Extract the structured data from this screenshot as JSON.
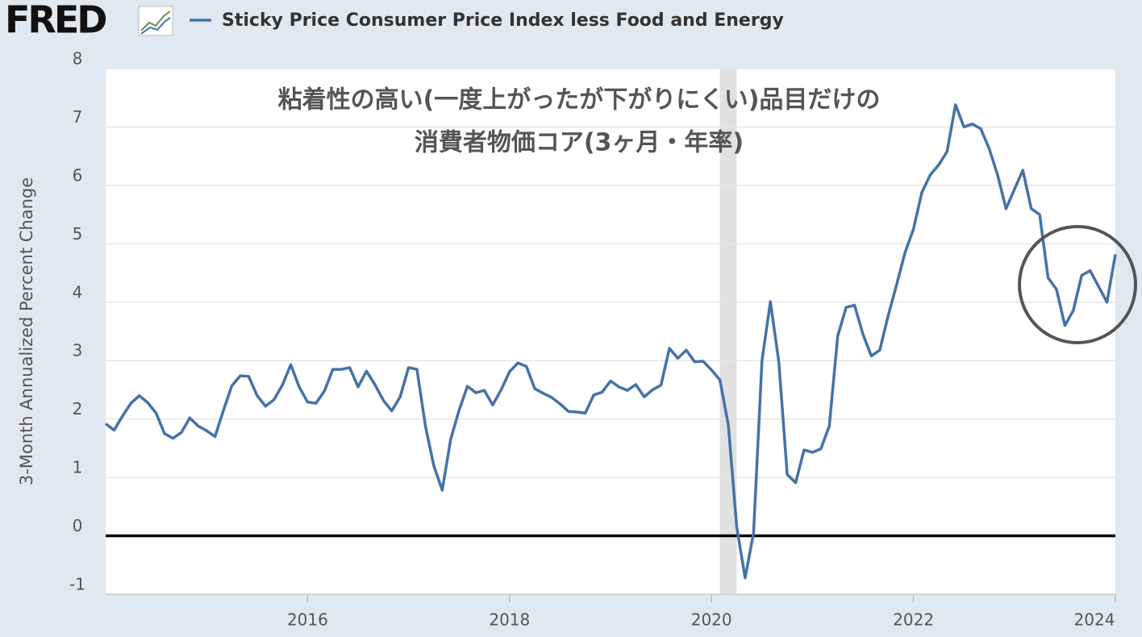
{
  "chart_data": {
    "type": "line",
    "logo": "FRED",
    "annotation": [
      "粘着性の高い(一度上がったが下がりにくい)品目だけの",
      "消費者物価コア(3ヶ月・年率)"
    ],
    "ylabel": "3-Month Annualized Percent Change",
    "xlim": [
      2014,
      2024
    ],
    "xticks": [
      2016,
      2018,
      2020,
      2022,
      2024
    ],
    "ylim": [
      -1,
      8
    ],
    "yticks": [
      -1,
      0,
      1,
      2,
      3,
      4,
      5,
      6,
      7,
      8
    ],
    "grid": true,
    "recessions": [
      [
        "2020-02",
        "2020-04"
      ]
    ],
    "x": [
      "2014-01",
      "2014-02",
      "2014-03",
      "2014-04",
      "2014-05",
      "2014-06",
      "2014-07",
      "2014-08",
      "2014-09",
      "2014-10",
      "2014-11",
      "2014-12",
      "2015-01",
      "2015-02",
      "2015-03",
      "2015-04",
      "2015-05",
      "2015-06",
      "2015-07",
      "2015-08",
      "2015-09",
      "2015-10",
      "2015-11",
      "2015-12",
      "2016-01",
      "2016-02",
      "2016-03",
      "2016-04",
      "2016-05",
      "2016-06",
      "2016-07",
      "2016-08",
      "2016-09",
      "2016-10",
      "2016-11",
      "2016-12",
      "2017-01",
      "2017-02",
      "2017-03",
      "2017-04",
      "2017-05",
      "2017-06",
      "2017-07",
      "2017-08",
      "2017-09",
      "2017-10",
      "2017-11",
      "2017-12",
      "2018-01",
      "2018-02",
      "2018-03",
      "2018-04",
      "2018-05",
      "2018-06",
      "2018-07",
      "2018-08",
      "2018-09",
      "2018-10",
      "2018-11",
      "2018-12",
      "2019-01",
      "2019-02",
      "2019-03",
      "2019-04",
      "2019-05",
      "2019-06",
      "2019-07",
      "2019-08",
      "2019-09",
      "2019-10",
      "2019-11",
      "2019-12",
      "2020-01",
      "2020-02",
      "2020-03",
      "2020-04",
      "2020-05",
      "2020-06",
      "2020-07",
      "2020-08",
      "2020-09",
      "2020-10",
      "2020-11",
      "2020-12",
      "2021-01",
      "2021-02",
      "2021-03",
      "2021-04",
      "2021-05",
      "2021-06",
      "2021-07",
      "2021-08",
      "2021-09",
      "2021-10",
      "2021-11",
      "2021-12",
      "2022-01",
      "2022-02",
      "2022-03",
      "2022-04",
      "2022-05",
      "2022-06",
      "2022-07",
      "2022-08",
      "2022-09",
      "2022-10",
      "2022-11",
      "2022-12",
      "2023-01",
      "2023-02",
      "2023-03",
      "2023-04",
      "2023-05",
      "2023-06",
      "2023-07",
      "2023-08",
      "2023-09",
      "2023-10",
      "2023-11",
      "2023-12",
      "2024-01"
    ],
    "series": [
      {
        "name": "Sticky Price Consumer Price Index less Food and Energy",
        "color": "#4572a7",
        "values": [
          1.92,
          1.81,
          2.05,
          2.27,
          2.4,
          2.28,
          2.1,
          1.75,
          1.67,
          1.77,
          2.02,
          1.88,
          1.8,
          1.7,
          2.15,
          2.57,
          2.74,
          2.73,
          2.4,
          2.22,
          2.33,
          2.58,
          2.93,
          2.55,
          2.29,
          2.27,
          2.48,
          2.85,
          2.85,
          2.88,
          2.55,
          2.82,
          2.59,
          2.32,
          2.14,
          2.38,
          2.88,
          2.85,
          1.88,
          1.2,
          0.78,
          1.65,
          2.15,
          2.56,
          2.45,
          2.49,
          2.24,
          2.5,
          2.81,
          2.96,
          2.9,
          2.52,
          2.44,
          2.37,
          2.26,
          2.13,
          2.12,
          2.1,
          2.41,
          2.46,
          2.65,
          2.55,
          2.49,
          2.59,
          2.38,
          2.5,
          2.58,
          3.21,
          3.04,
          3.18,
          2.98,
          2.99,
          2.84,
          2.67,
          1.9,
          0.15,
          -0.72,
          0.05,
          3.0,
          4.01,
          2.98,
          1.05,
          0.91,
          1.47,
          1.43,
          1.49,
          1.88,
          3.42,
          3.91,
          3.95,
          3.45,
          3.08,
          3.18,
          3.77,
          4.3,
          4.85,
          5.25,
          5.88,
          6.18,
          6.35,
          6.58,
          7.38,
          7.0,
          7.05,
          6.97,
          6.63,
          6.18,
          5.6,
          5.93,
          6.26,
          5.6,
          5.5,
          4.42,
          4.22,
          3.6,
          3.86,
          4.46,
          4.54,
          4.27,
          4.0,
          4.82
        ]
      }
    ]
  }
}
